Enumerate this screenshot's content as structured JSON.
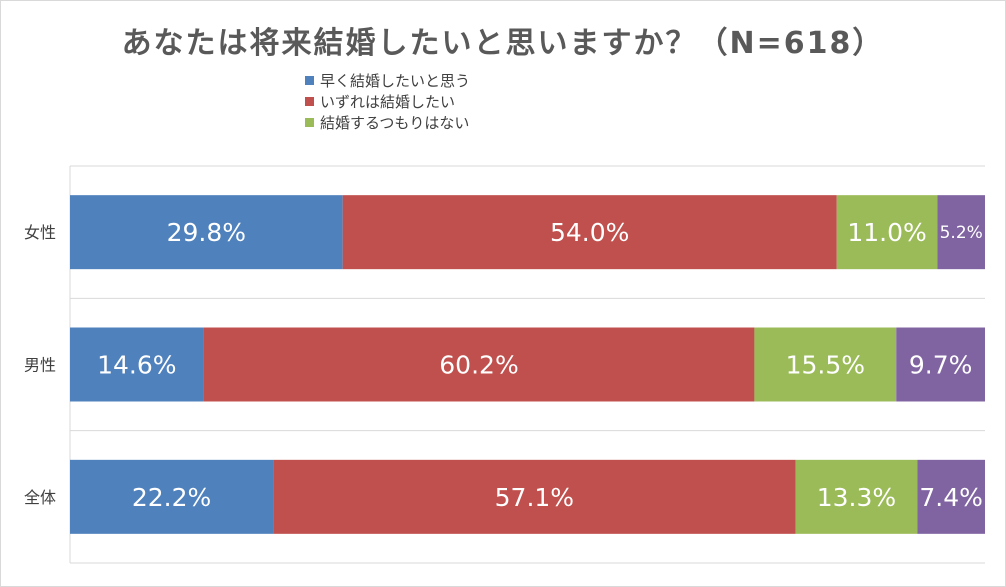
{
  "chart_data": {
    "type": "bar",
    "orientation": "horizontal",
    "stacked": true,
    "title": "あなたは将来結婚したいと思いますか？（N=618）",
    "categories": [
      "女性",
      "男性",
      "全体"
    ],
    "series": [
      {
        "name": "早く結婚したいと思う",
        "color": "#4f81bd",
        "values": [
          29.8,
          14.6,
          22.2
        ],
        "labels": [
          "29.8%",
          "14.6%",
          "22.2%"
        ]
      },
      {
        "name": "いずれは結婚したい",
        "color": "#c0504d",
        "values": [
          54.0,
          60.2,
          57.1
        ],
        "labels": [
          "54.0%",
          "60.2%",
          "57.1%"
        ]
      },
      {
        "name": "結婚するつもりはない",
        "color": "#9bbb59",
        "values": [
          11.0,
          15.5,
          13.3
        ],
        "labels": [
          "11.0%",
          "15.5%",
          "13.3%"
        ]
      },
      {
        "name": "",
        "color": "#8064a2",
        "values": [
          5.2,
          9.7,
          7.4
        ],
        "labels": [
          "5.2%",
          "9.7%",
          "7.4%"
        ]
      }
    ],
    "xlim": [
      0,
      100
    ],
    "grid": true,
    "legend_position": "top"
  }
}
